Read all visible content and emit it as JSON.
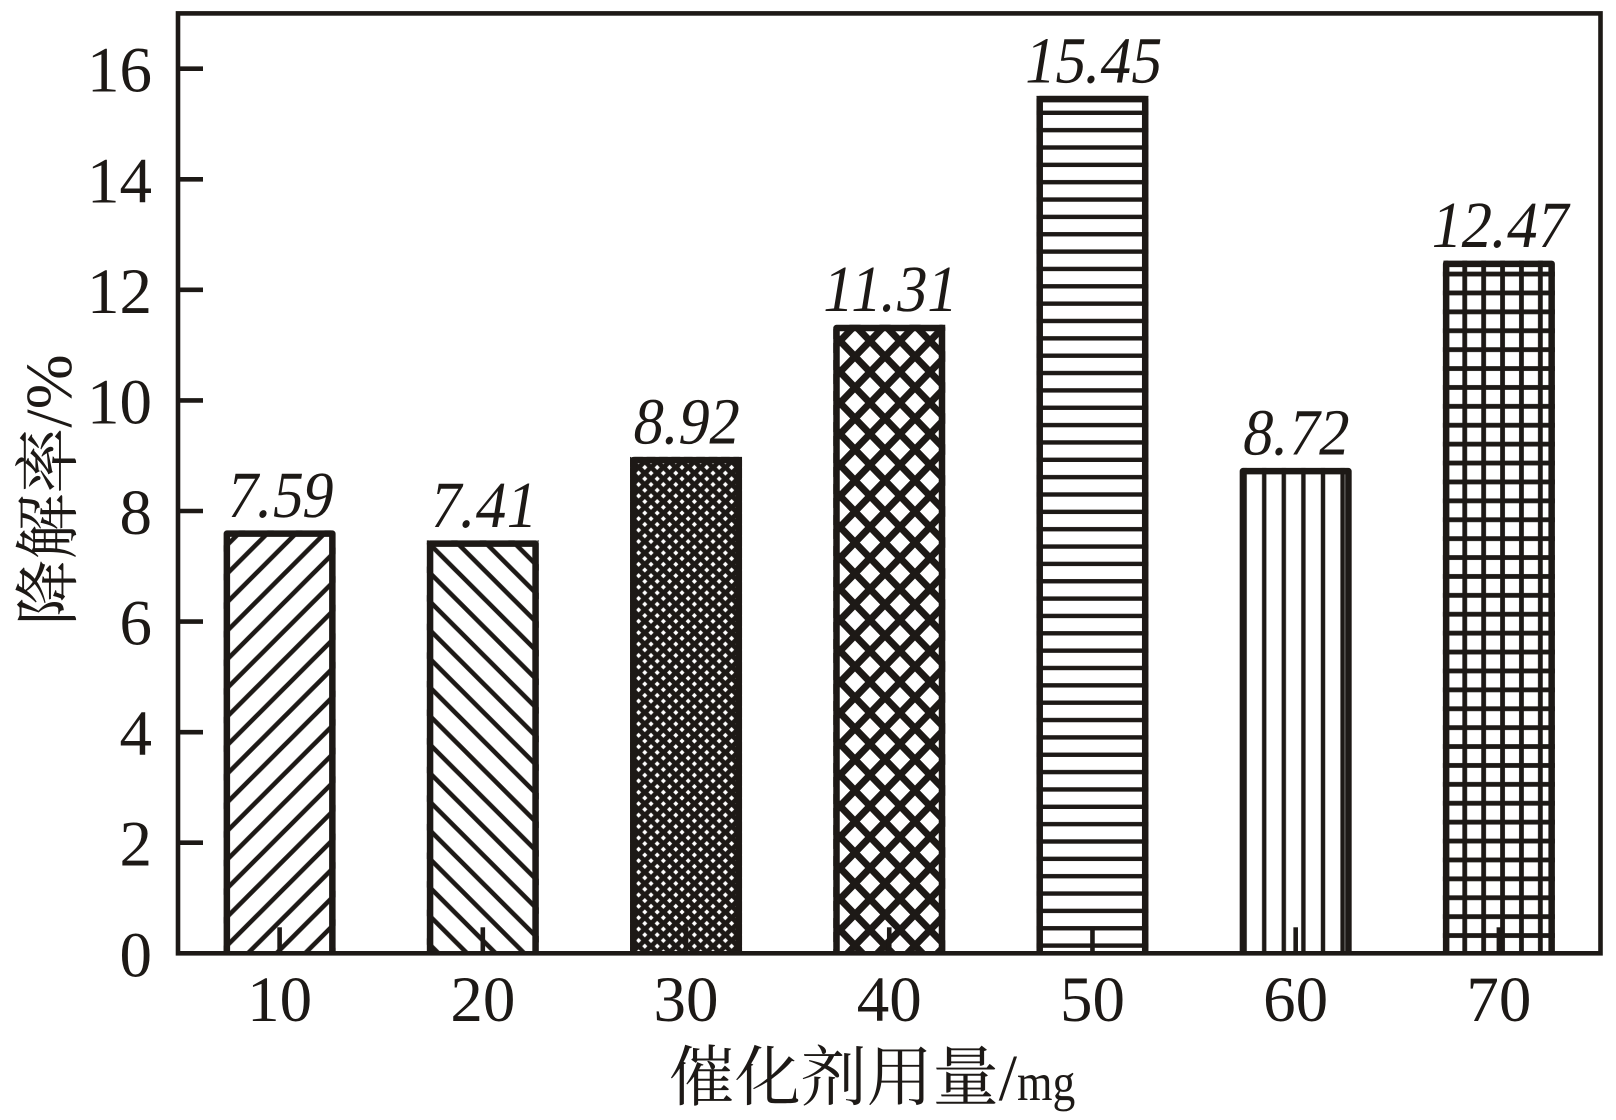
{
  "page": {
    "background_color": "#ffffff",
    "figure_type": "bar chart"
  },
  "chart_data": {
    "type": "bar",
    "title": "",
    "xlabel": "催化剂用量/mg",
    "ylabel": "降解率/%",
    "categories": [
      "10",
      "20",
      "30",
      "40",
      "50",
      "60",
      "70"
    ],
    "values": [
      7.59,
      7.41,
      8.92,
      11.31,
      15.45,
      8.72,
      12.47
    ],
    "bar_value_labels": [
      "7.59",
      "7.41",
      "8.92",
      "11.31",
      "15.45",
      "8.72",
      "12.47"
    ],
    "hatches": [
      "diagonal-up",
      "diagonal-down",
      "dense-diamond-dots",
      "diamond-crosshatch",
      "horizontal-lines",
      "vertical-lines",
      "square-grid"
    ],
    "ylim": [
      0,
      17
    ],
    "yticks": [
      0,
      2,
      4,
      6,
      8,
      10,
      12,
      14,
      16
    ],
    "grid": false,
    "legend_position": "none",
    "bar_fill": "white-with-black-hatch-pattern",
    "ink_color": "#1d1916",
    "background_color": "#ffffff"
  }
}
